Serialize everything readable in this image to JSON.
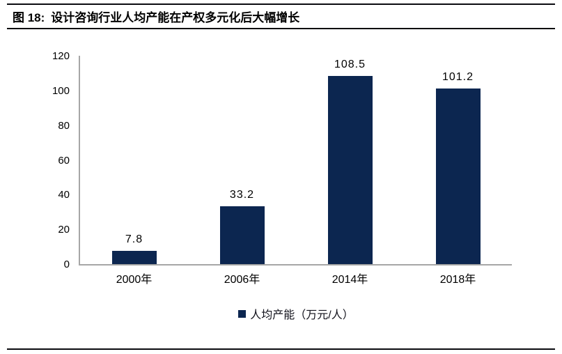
{
  "figure": {
    "label": "图 18:",
    "title": "设计咨询行业人均产能在产权多元化后大幅增长"
  },
  "chart_data": {
    "type": "bar",
    "categories": [
      "2000年",
      "2006年",
      "2014年",
      "2018年"
    ],
    "values": [
      7.8,
      33.2,
      108.5,
      101.2
    ],
    "value_labels": [
      "7.8",
      "33.2",
      "108.5",
      "101.2"
    ],
    "series_name": "人均产能（万元/人）",
    "legend": [
      "人均产能（万元/人）"
    ],
    "legend_position": "bottom",
    "title": "",
    "xlabel": "",
    "ylabel": "",
    "ylim": [
      0,
      120
    ],
    "yticks": [
      0,
      20,
      40,
      60,
      80,
      100,
      120
    ],
    "grid": false
  },
  "colors": {
    "bar": "#0c2650",
    "axis": "#a6a6a6",
    "rule": "#0a0a0f",
    "text": "#000000",
    "background": "#ffffff"
  }
}
